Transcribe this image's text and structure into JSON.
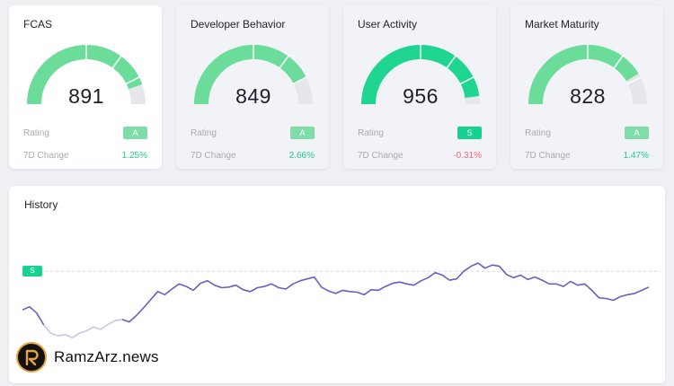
{
  "cards": [
    {
      "title": "FCAS",
      "value": "891",
      "rating_label": "Rating",
      "rating": "A",
      "change_label": "7D Change",
      "change": "1.25%",
      "change_dir": "pos",
      "badge_color": "#7fddaa",
      "gauge_fraction": 0.891,
      "gauge_color": "#6cdc9b"
    },
    {
      "title": "Developer Behavior",
      "value": "849",
      "rating_label": "Rating",
      "rating": "A",
      "change_label": "7D Change",
      "change": "2.66%",
      "change_dir": "pos",
      "badge_color": "#7fddaa",
      "gauge_fraction": 0.849,
      "gauge_color": "#6cdc9b"
    },
    {
      "title": "User Activity",
      "value": "956",
      "rating_label": "Rating",
      "rating": "S",
      "change_label": "7D Change",
      "change": "-0.31%",
      "change_dir": "neg",
      "badge_color": "#16d28f",
      "gauge_fraction": 0.956,
      "gauge_color": "#1fd690"
    },
    {
      "title": "Market Maturity",
      "value": "828",
      "rating_label": "Rating",
      "rating": "A",
      "change_label": "7D Change",
      "change": "1.47%",
      "change_dir": "pos",
      "badge_color": "#7fddaa",
      "gauge_fraction": 0.828,
      "gauge_color": "#6cdc9b"
    }
  ],
  "history": {
    "title": "History",
    "threshold_label": "S",
    "line_color": "#6a5fc1",
    "faded_color": "#c9c6e6",
    "threshold_color": "#d4d6de"
  },
  "chart_data": {
    "type": "line",
    "title": "History",
    "xlabel": "",
    "ylabel": "",
    "ylim": [
      780,
      1000
    ],
    "threshold": {
      "label": "S",
      "value": 950
    },
    "series": [
      {
        "name": "FCAS",
        "values": [
          889,
          894,
          884,
          865,
          852,
          848,
          850,
          845,
          852,
          856,
          862,
          858,
          866,
          872,
          874,
          870,
          880,
          892,
          905,
          918,
          913,
          922,
          930,
          926,
          920,
          931,
          935,
          928,
          924,
          925,
          928,
          921,
          918,
          924,
          926,
          930,
          924,
          922,
          930,
          935,
          938,
          941,
          925,
          919,
          915,
          920,
          918,
          917,
          913,
          921,
          920,
          926,
          931,
          933,
          930,
          928,
          935,
          940,
          948,
          944,
          936,
          938,
          950,
          958,
          963,
          955,
          960,
          958,
          945,
          940,
          944,
          937,
          941,
          936,
          930,
          930,
          926,
          934,
          928,
          930,
          920,
          908,
          907,
          904,
          910,
          913,
          915,
          920,
          925
        ]
      }
    ]
  },
  "brand": {
    "name": "RamzArz.news"
  }
}
